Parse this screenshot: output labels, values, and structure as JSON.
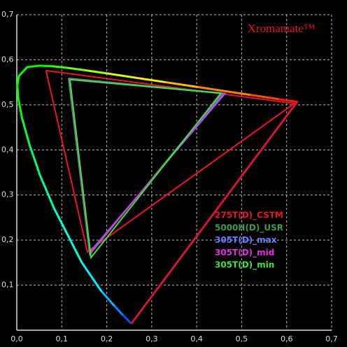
{
  "chart_data": {
    "type": "line",
    "title": "Xromamate™",
    "xlim": [
      0,
      0.7
    ],
    "ylim": [
      0,
      0.7
    ],
    "xticks": [
      {
        "value": 0,
        "label": "0,0"
      },
      {
        "value": 0.1,
        "label": "0,1"
      },
      {
        "value": 0.2,
        "label": "0,2"
      },
      {
        "value": 0.3,
        "label": "0,3"
      },
      {
        "value": 0.4,
        "label": "0,4"
      },
      {
        "value": 0.5,
        "label": "0,5"
      },
      {
        "value": 0.6,
        "label": "0,6"
      },
      {
        "value": 0.7,
        "label": "0,7"
      }
    ],
    "yticks": [
      {
        "value": 0.1,
        "label": "0,1"
      },
      {
        "value": 0.2,
        "label": "0,2"
      },
      {
        "value": 0.3,
        "label": "0,3"
      },
      {
        "value": 0.4,
        "label": "0,4"
      },
      {
        "value": 0.5,
        "label": "0,5"
      },
      {
        "value": 0.6,
        "label": "0,6"
      },
      {
        "value": 0.7,
        "label": "0,7"
      }
    ],
    "grid": true,
    "locus": {
      "x": [
        0.2557,
        0.2522,
        0.2347,
        0.2161,
        0.1877,
        0.1441,
        0.0828,
        0.0521,
        0.0282,
        0.0119,
        0.0035,
        0.0014,
        0.0046,
        0.0231,
        0.0501,
        0.0792,
        0.1127,
        0.1531,
        0.2026,
        0.2623,
        0.3315,
        0.4035,
        0.5203,
        0.583,
        0.6234
      ],
      "values": [
        0.0159,
        0.0169,
        0.035,
        0.055,
        0.0871,
        0.151,
        0.2708,
        0.3427,
        0.4117,
        0.4699,
        0.513,
        0.5431,
        0.5638,
        0.5837,
        0.5868,
        0.5856,
        0.5821,
        0.5766,
        0.5694,
        0.5604,
        0.5501,
        0.5393,
        0.5219,
        0.5125,
        0.5065
      ]
    },
    "series": [
      {
        "name": "275T(D)_CSTM",
        "color": "#e8142a",
        "x": [
          0.065,
          0.617,
          0.157,
          0.065
        ],
        "values": [
          0.576,
          0.503,
          0.174,
          0.576
        ]
      },
      {
        "name": "5000H(D)_USR",
        "color": "#3f9a55",
        "x": [
          0.115,
          0.457,
          0.162,
          0.115
        ],
        "values": [
          0.559,
          0.526,
          0.168,
          0.559
        ]
      },
      {
        "name": "305T(D)_max",
        "color": "#6a7cff",
        "x": [
          0.118,
          0.463,
          0.163,
          0.118
        ],
        "values": [
          0.557,
          0.525,
          0.174,
          0.557
        ]
      },
      {
        "name": "305T(D)_mid",
        "color": "#e030e0",
        "x": [
          0.117,
          0.46,
          0.163,
          0.117
        ],
        "values": [
          0.557,
          0.525,
          0.171,
          0.557
        ]
      },
      {
        "name": "305T(D)_min",
        "color": "#3fe23f",
        "x": [
          0.118,
          0.454,
          0.165,
          0.118
        ],
        "values": [
          0.556,
          0.526,
          0.161,
          0.556
        ]
      }
    ]
  }
}
